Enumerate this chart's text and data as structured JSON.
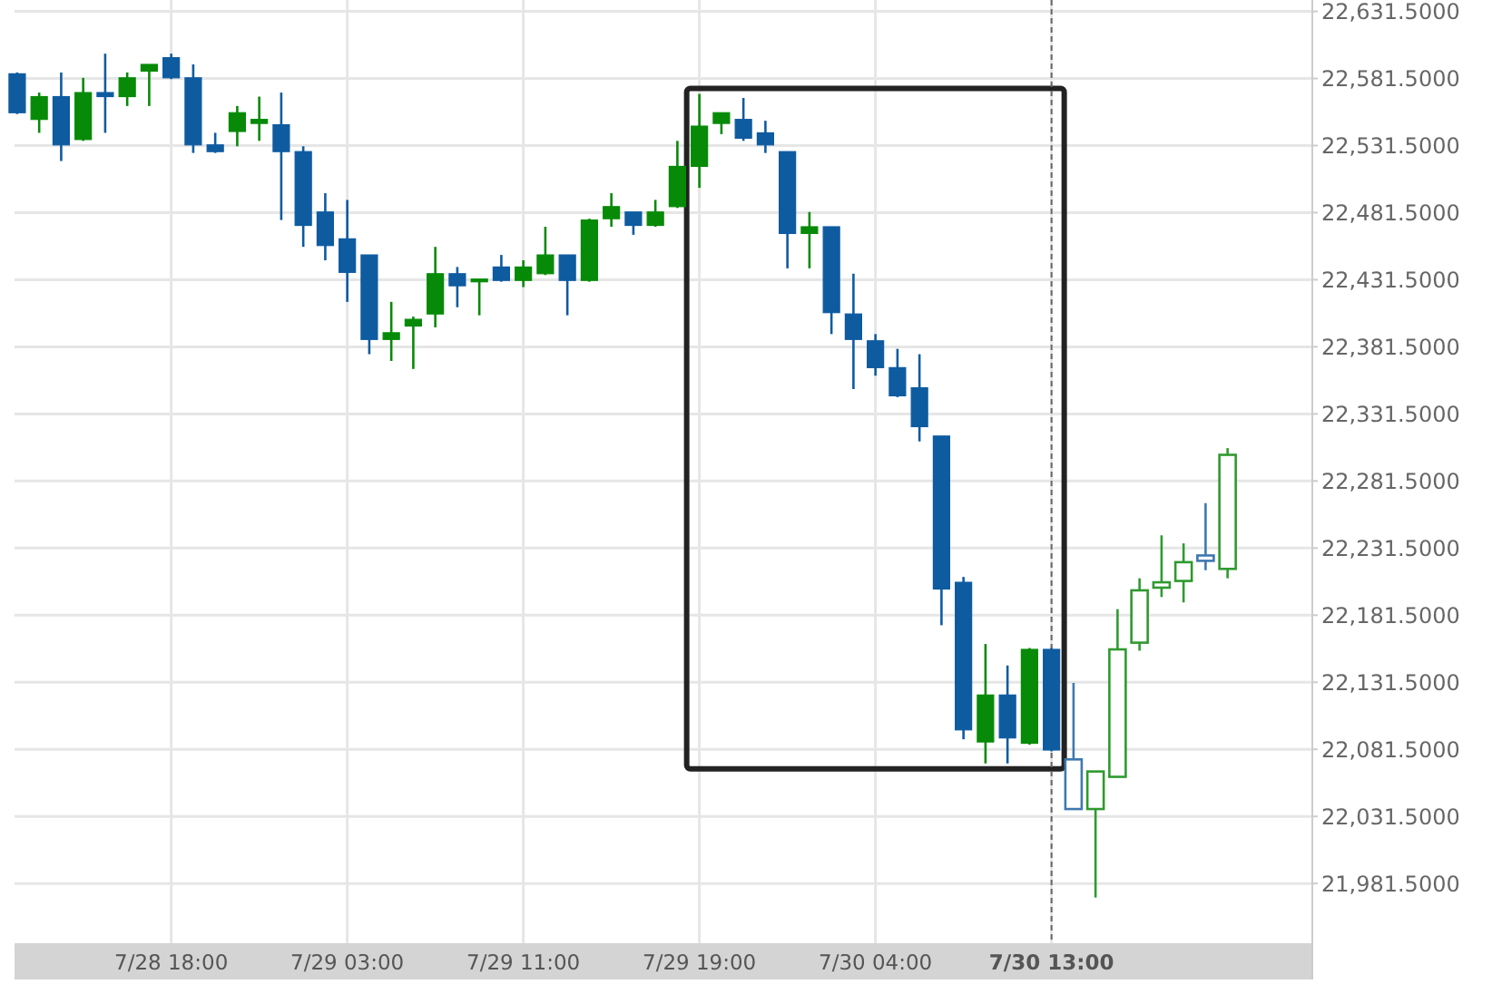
{
  "chart_data": {
    "type": "candlestick",
    "categories": [
      null,
      null,
      null,
      null,
      null,
      null,
      null,
      "7/28 18:00",
      null,
      null,
      null,
      null,
      null,
      null,
      null,
      "7/29 03:00",
      null,
      null,
      null,
      null,
      null,
      null,
      null,
      "7/29 11:00",
      null,
      null,
      null,
      null,
      null,
      null,
      null,
      "7/29 19:00",
      null,
      null,
      null,
      null,
      null,
      null,
      null,
      "7/30 04:00",
      null,
      null,
      null,
      null,
      null,
      null,
      null,
      "7/30 13:00",
      null,
      null,
      null,
      null,
      null,
      null,
      null,
      null
    ],
    "ohlc": [
      [
        22585,
        22586,
        22555,
        22556
      ],
      [
        22551,
        22571,
        22541,
        22568
      ],
      [
        22568,
        22586,
        22520,
        22532
      ],
      [
        22536,
        22582,
        22535,
        22571
      ],
      [
        22571,
        22600,
        22541,
        22568
      ],
      [
        22568,
        22586,
        22561,
        22582
      ],
      [
        22587,
        22592,
        22561,
        22592
      ],
      [
        22597,
        22600,
        22581,
        22582
      ],
      [
        22582,
        22592,
        22526,
        22532
      ],
      [
        22532,
        22541,
        22526,
        22527
      ],
      [
        22542,
        22561,
        22531,
        22556
      ],
      [
        22548,
        22568,
        22535,
        22551
      ],
      [
        22547,
        22571,
        22476,
        22527
      ],
      [
        22527,
        22531,
        22456,
        22472
      ],
      [
        22482,
        22496,
        22446,
        22457
      ],
      [
        22462,
        22491,
        22415,
        22437
      ],
      [
        22450,
        22450,
        22376,
        22387
      ],
      [
        22387,
        22415,
        22371,
        22392
      ],
      [
        22397,
        22404,
        22365,
        22402
      ],
      [
        22406,
        22456,
        22396,
        22436
      ],
      [
        22436,
        22441,
        22411,
        22427
      ],
      [
        22431,
        22432,
        22405,
        22432
      ],
      [
        22441,
        22450,
        22430,
        22431
      ],
      [
        22431,
        22446,
        22426,
        22441
      ],
      [
        22436,
        22471,
        22435,
        22450
      ],
      [
        22450,
        22450,
        22405,
        22431
      ],
      [
        22431,
        22477,
        22430,
        22476
      ],
      [
        22477,
        22496,
        22471,
        22486
      ],
      [
        22482,
        22482,
        22465,
        22472
      ],
      [
        22472,
        22491,
        22471,
        22482
      ],
      [
        22486,
        22535,
        22485,
        22516
      ],
      [
        22516,
        22570,
        22500,
        22546
      ],
      [
        22548,
        22556,
        22540,
        22556
      ],
      [
        22551,
        22567,
        22535,
        22537
      ],
      [
        22541,
        22550,
        22526,
        22532
      ],
      [
        22527,
        22527,
        22440,
        22466
      ],
      [
        22466,
        22482,
        22440,
        22471
      ],
      [
        22471,
        22471,
        22391,
        22407
      ],
      [
        22406,
        22436,
        22350,
        22387
      ],
      [
        22386,
        22391,
        22360,
        22366
      ],
      [
        22366,
        22380,
        22344,
        22345
      ],
      [
        22351,
        22376,
        22311,
        22322
      ],
      [
        22315,
        22315,
        22174,
        22201
      ],
      [
        22206,
        22210,
        22089,
        22096
      ],
      [
        22087,
        22160,
        22071,
        22122
      ],
      [
        22122,
        22144,
        22071,
        22090
      ],
      [
        22086,
        22157,
        22085,
        22156
      ],
      [
        22156,
        22157,
        22080,
        22081
      ],
      [
        22074,
        22131,
        22037,
        22037
      ],
      [
        22037,
        22065,
        21971,
        22065
      ],
      [
        22061,
        22186,
        22061,
        22156
      ],
      [
        22161,
        22209,
        22155,
        22200
      ],
      [
        22202,
        22241,
        22195,
        22206
      ],
      [
        22207,
        22235,
        22191,
        22221
      ],
      [
        22226,
        22265,
        22215,
        22222
      ],
      [
        22216,
        22306,
        22209,
        22301
      ]
    ],
    "colors": [
      "#0e5ba0",
      "#078a07",
      "#0e5ba0",
      "#078a07",
      "#0e5ba0",
      "#078a07",
      "#078a07",
      "#0e5ba0",
      "#0e5ba0",
      "#0e5ba0",
      "#078a07",
      "#078a07",
      "#0e5ba0",
      "#0e5ba0",
      "#0e5ba0",
      "#0e5ba0",
      "#0e5ba0",
      "#078a07",
      "#078a07",
      "#078a07",
      "#0e5ba0",
      "#078a07",
      "#0e5ba0",
      "#078a07",
      "#078a07",
      "#0e5ba0",
      "#078a07",
      "#078a07",
      "#0e5ba0",
      "#078a07",
      "#078a07",
      "#078a07",
      "#078a07",
      "#0e5ba0",
      "#0e5ba0",
      "#0e5ba0",
      "#078a07",
      "#0e5ba0",
      "#0e5ba0",
      "#0e5ba0",
      "#0e5ba0",
      "#0e5ba0",
      "#0e5ba0",
      "#0e5ba0",
      "#078a07",
      "#0e5ba0",
      "#078a07",
      "#0e5ba0",
      "#3f78b0",
      "#2f9a2f",
      "#2f9a2f",
      "#2f9a2f",
      "#2f9a2f",
      "#2f9a2f",
      "#3f78b0",
      "#2f9a2f"
    ],
    "ylim": [
      21937,
      22640
    ],
    "yticks": [
      {
        "value": 21981.5,
        "label": "21,981.5000"
      },
      {
        "value": 22031.5,
        "label": "22,031.5000"
      },
      {
        "value": 22081.5,
        "label": "22,081.5000"
      },
      {
        "value": 22131.5,
        "label": "22,131.5000"
      },
      {
        "value": 22181.5,
        "label": "22,181.5000"
      },
      {
        "value": 22231.5,
        "label": "22,231.5000"
      },
      {
        "value": 22281.5,
        "label": "22,281.5000"
      },
      {
        "value": 22331.5,
        "label": "22,331.5000"
      },
      {
        "value": 22381.5,
        "label": "22,381.5000"
      },
      {
        "value": 22431.5,
        "label": "22,431.5000"
      },
      {
        "value": 22481.5,
        "label": "22,481.5000"
      },
      {
        "value": 22531.5,
        "label": "22,531.5000"
      },
      {
        "value": 22581.5,
        "label": "22,581.5000"
      },
      {
        "value": 22631.5,
        "label": "22,631.5000"
      }
    ],
    "ref_lines": [
      {
        "axis": "x",
        "value": "7/30 13:00",
        "line_style": "dashed",
        "color": "#666666"
      }
    ],
    "grid": true
  }
}
